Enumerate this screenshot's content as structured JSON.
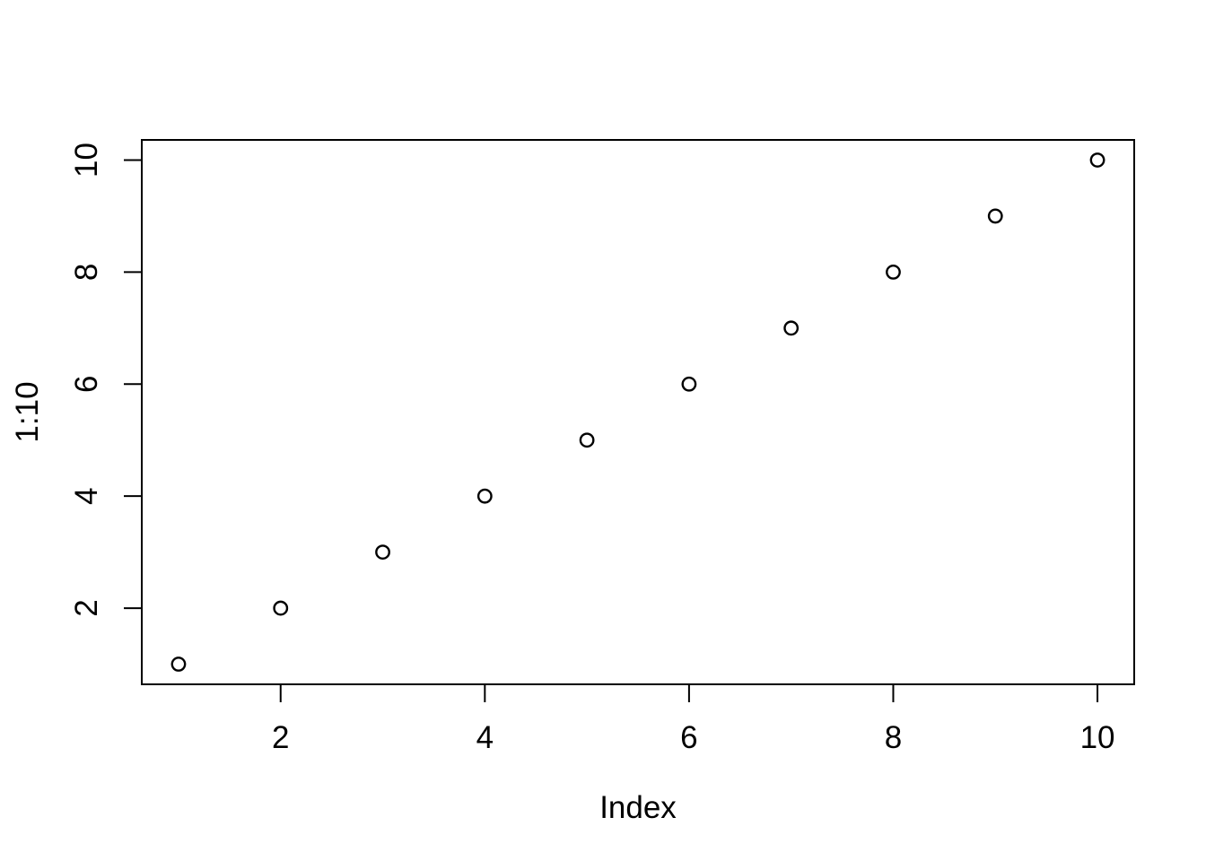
{
  "chart_data": {
    "type": "scatter",
    "title": "",
    "xlabel": "Index",
    "ylabel": "1:10",
    "x": [
      1,
      2,
      3,
      4,
      5,
      6,
      7,
      8,
      9,
      10
    ],
    "y": [
      1,
      2,
      3,
      4,
      5,
      6,
      7,
      8,
      9,
      10
    ],
    "xlim": [
      0.64,
      10.36
    ],
    "ylim": [
      0.64,
      10.36
    ],
    "xticks": [
      2,
      4,
      6,
      8,
      10
    ],
    "yticks": [
      2,
      4,
      6,
      8,
      10
    ],
    "grid": false,
    "legend": null,
    "marker": "open-circle",
    "colors": {
      "background": "#ffffff",
      "axis": "#000000",
      "points": "#000000",
      "text": "#000000"
    }
  }
}
